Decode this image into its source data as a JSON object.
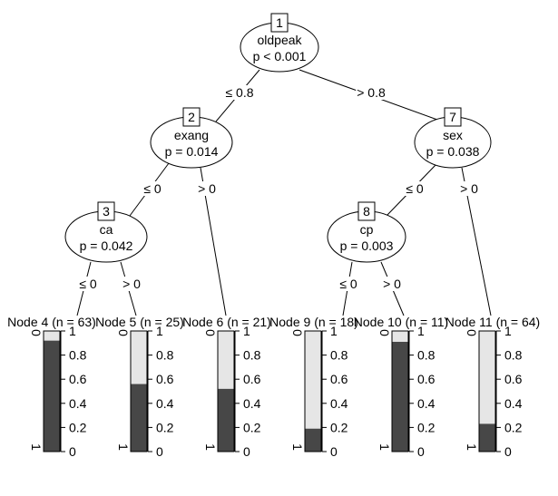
{
  "tree": {
    "inner_nodes": [
      {
        "id": "1",
        "variable": "oldpeak",
        "pvalue": "p < 0.001"
      },
      {
        "id": "2",
        "variable": "exang",
        "pvalue": "p = 0.014"
      },
      {
        "id": "3",
        "variable": "ca",
        "pvalue": "p = 0.042"
      },
      {
        "id": "7",
        "variable": "sex",
        "pvalue": "p = 0.038"
      },
      {
        "id": "8",
        "variable": "cp",
        "pvalue": "p = 0.003"
      }
    ],
    "edges": [
      {
        "from": "1",
        "to": "2",
        "label": "≤ 0.8"
      },
      {
        "from": "1",
        "to": "7",
        "label": "> 0.8"
      },
      {
        "from": "2",
        "to": "3",
        "label": "≤ 0"
      },
      {
        "from": "2",
        "to": "6",
        "label": "> 0"
      },
      {
        "from": "3",
        "to": "4",
        "label": "≤ 0"
      },
      {
        "from": "3",
        "to": "5",
        "label": "> 0"
      },
      {
        "from": "7",
        "to": "8",
        "label": "≤ 0"
      },
      {
        "from": "7",
        "to": "11",
        "label": "> 0"
      },
      {
        "from": "8",
        "to": "9",
        "label": "≤ 0"
      },
      {
        "from": "8",
        "to": "10",
        "label": "> 0"
      }
    ],
    "terminal_nodes": [
      {
        "id": "4",
        "title": "Node 4 (n = 63)",
        "dark_fraction": 0.92
      },
      {
        "id": "5",
        "title": "Node 5 (n = 25)",
        "dark_fraction": 0.56
      },
      {
        "id": "6",
        "title": "Node 6 (n = 21)",
        "dark_fraction": 0.52
      },
      {
        "id": "9",
        "title": "Node 9 (n = 18)",
        "dark_fraction": 0.19
      },
      {
        "id": "10",
        "title": "Node 10 (n = 11)",
        "dark_fraction": 0.91
      },
      {
        "id": "11",
        "title": "Node 11 (n = 64)",
        "dark_fraction": 0.23
      }
    ],
    "axis_ticks": [
      "1",
      "0.8",
      "0.6",
      "0.4",
      "0.2",
      "0"
    ],
    "class_labels": [
      "0",
      "1"
    ],
    "colors": {
      "dark": "#474747",
      "light": "#e6e6e6"
    }
  }
}
